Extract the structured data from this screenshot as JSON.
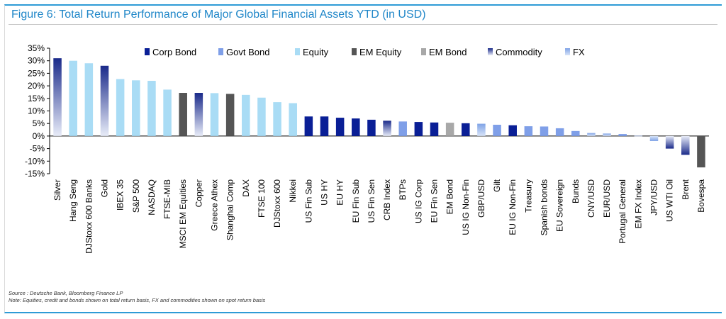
{
  "title": "Figure 6: Total Return Performance of Major Global Financial Assets YTD (in USD)",
  "footnotes": {
    "source": "Source : Deutsche Bank, Bloomberg Finance LP",
    "note": "Note: Equities, credit and bonds shown on total return basis, FX and commodities shown on spot return basis"
  },
  "colors": {
    "Corp Bond": "#0a1f96",
    "Govt Bond": "#7f9fe8",
    "Equity": "#a9dcf5",
    "EM Equity": "#555555",
    "EM Bond": "#a8a8a8",
    "Commodity": "#1a2a8a",
    "FX": "#9ab8ea"
  },
  "chart_data": {
    "type": "bar",
    "title": "Figure 6: Total Return Performance of Major Global Financial Assets YTD (in USD)",
    "xlabel": "",
    "ylabel": "",
    "ylim": [
      -15,
      35
    ],
    "yticks": [
      "35%",
      "30%",
      "25%",
      "20%",
      "15%",
      "10%",
      "5%",
      "0%",
      "-5%",
      "-10%",
      "-15%"
    ],
    "ytick_values": [
      35,
      30,
      25,
      20,
      15,
      10,
      5,
      0,
      -5,
      -10,
      -15
    ],
    "grid": false,
    "legend_position": "top",
    "legend": [
      "Corp Bond",
      "Govt Bond",
      "Equity",
      "EM Equity",
      "EM Bond",
      "Commodity",
      "FX"
    ],
    "categories": [
      "Silver",
      "Hang Seng",
      "DJStoxx 600 Banks",
      "Gold",
      "IBEX 35",
      "S&P 500",
      "NASDAQ",
      "FTSE-MIB",
      "MSCI EM Equities",
      "Copper",
      "Greece Athex",
      "Shanghai Comp",
      "DAX",
      "FTSE 100",
      "DJStoxx 600",
      "Nikkei",
      "US Fin Sub",
      "US HY",
      "EU HY",
      "EU Fin Sub",
      "US Fin Sen",
      "CRB Index",
      "BTPs",
      "US IG Corp",
      "EU Fin Sen",
      "EM Bond",
      "US IG Non-Fin",
      "GBP/USD",
      "Gilt",
      "EU IG Non-Fin",
      "Treasury",
      "Spanish bonds",
      "EU Sovereign",
      "Bunds",
      "CNY/USD",
      "EUR/USD",
      "Portugal General",
      "EM FX Index",
      "JPY/USD",
      "US WTI Oil",
      "Brent",
      "Bovespa"
    ],
    "values": [
      31,
      30,
      29,
      28,
      22.7,
      22.2,
      22,
      18.5,
      17.2,
      17.2,
      17.1,
      16.8,
      16.4,
      15.3,
      13.5,
      13.1,
      7.8,
      7.8,
      7.3,
      7.0,
      6.5,
      6.1,
      5.8,
      5.6,
      5.4,
      5.3,
      5.1,
      4.9,
      4.5,
      4.3,
      3.9,
      3.8,
      3.1,
      2.0,
      1.2,
      1.0,
      0.8,
      0.1,
      -2.0,
      -5.0,
      -7.5,
      -12.5
    ],
    "asset_class": [
      "Commodity",
      "Equity",
      "Equity",
      "Commodity",
      "Equity",
      "Equity",
      "Equity",
      "Equity",
      "EM Equity",
      "Commodity",
      "Equity",
      "EM Equity",
      "Equity",
      "Equity",
      "Equity",
      "Equity",
      "Corp Bond",
      "Corp Bond",
      "Corp Bond",
      "Corp Bond",
      "Corp Bond",
      "Commodity",
      "Govt Bond",
      "Corp Bond",
      "Corp Bond",
      "EM Bond",
      "Corp Bond",
      "FX",
      "Govt Bond",
      "Corp Bond",
      "Govt Bond",
      "Govt Bond",
      "Govt Bond",
      "Govt Bond",
      "FX",
      "FX",
      "Govt Bond",
      "FX",
      "FX",
      "Commodity",
      "Commodity",
      "EM Equity"
    ]
  }
}
